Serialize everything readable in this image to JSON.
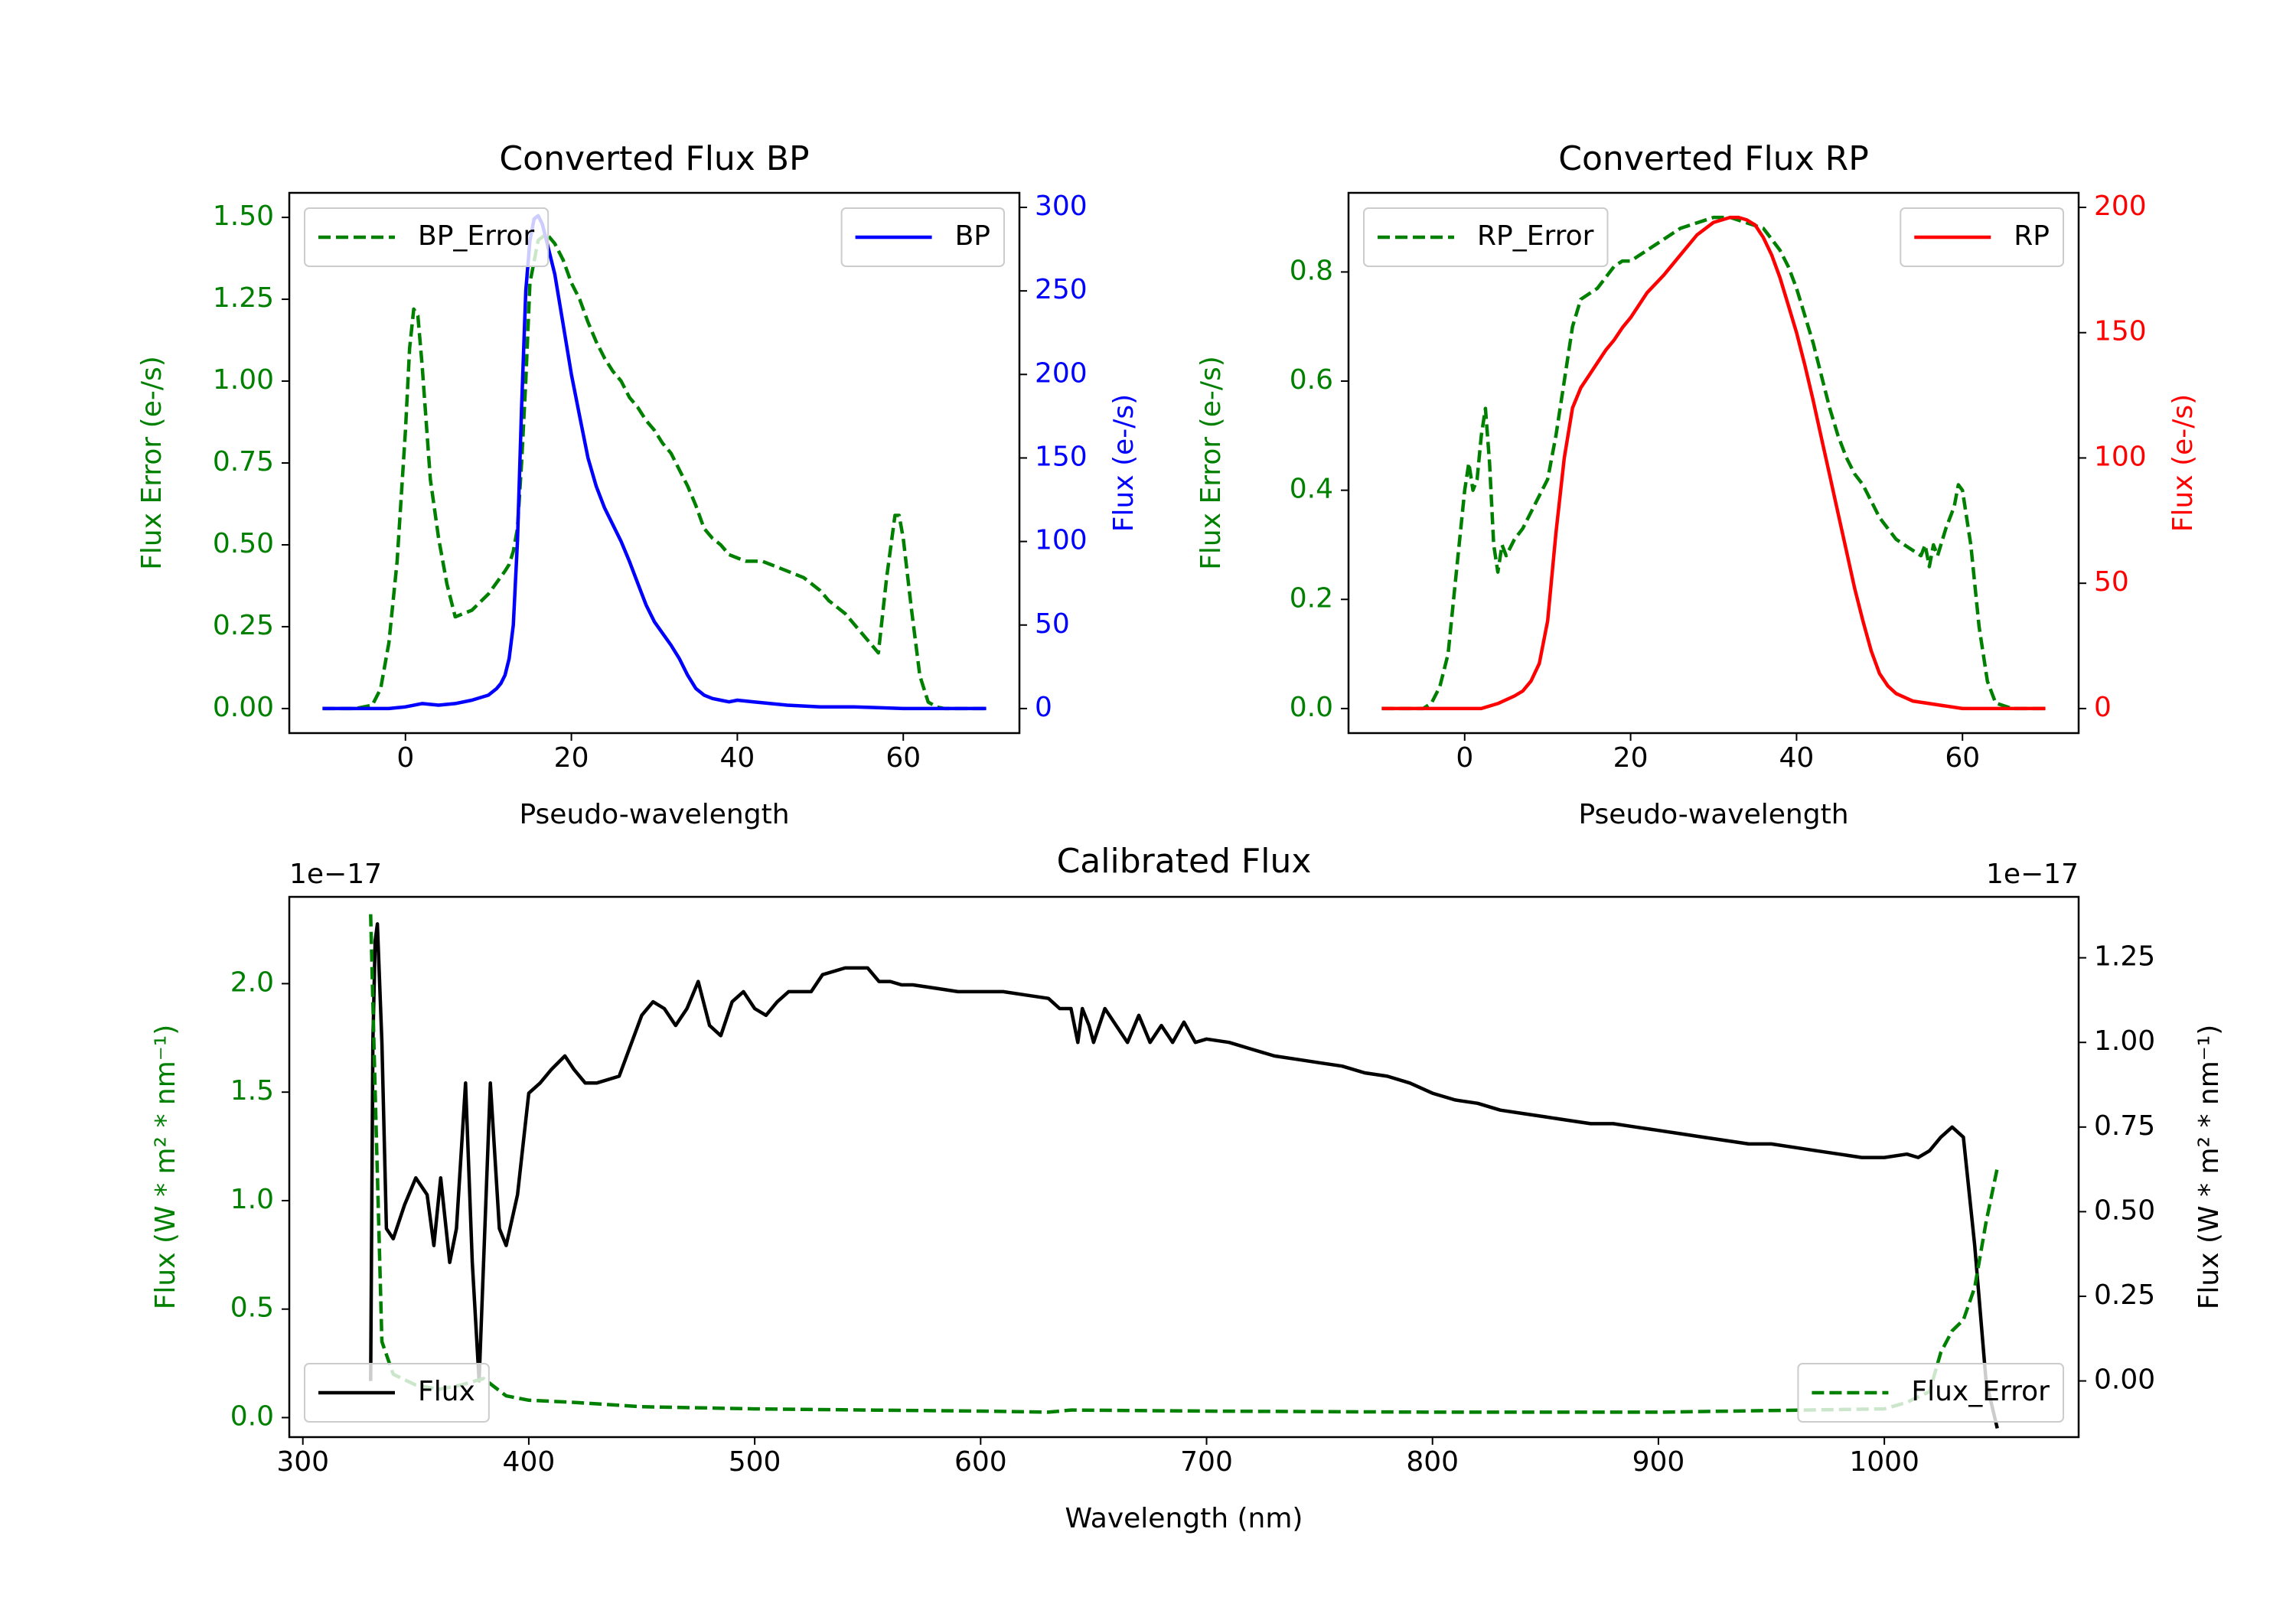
{
  "colors": {
    "error": "#008000",
    "bp": "#0000ff",
    "rp": "#ff0000",
    "flux": "#000000",
    "axis": "#000000",
    "background": "#ffffff",
    "legend_border": "#cccccc"
  },
  "chart_data": [
    {
      "id": "bp",
      "type": "line",
      "title": "Converted Flux BP",
      "xlabel": "Pseudo-wavelength",
      "xlim": [
        -14,
        74
      ],
      "xticks": [
        0,
        20,
        40,
        60
      ],
      "xtick_labels": [
        "0",
        "20",
        "40",
        "60"
      ],
      "left_axis": {
        "label": "Flux Error (e-/s)",
        "color": "#008000",
        "ylim": [
          -0.075,
          1.575
        ],
        "ticks": [
          0,
          0.25,
          0.5,
          0.75,
          1.0,
          1.25,
          1.5
        ],
        "tick_labels": [
          "0.00",
          "0.25",
          "0.50",
          "0.75",
          "1.00",
          "1.25",
          "1.50"
        ]
      },
      "right_axis": {
        "label": "Flux (e-/s)",
        "color": "#0000ff",
        "ylim": [
          -14.7,
          308.7
        ],
        "ticks": [
          0,
          50,
          100,
          150,
          200,
          250,
          300
        ],
        "tick_labels": [
          "0",
          "50",
          "100",
          "150",
          "200",
          "250",
          "300"
        ]
      },
      "series": [
        {
          "name": "BP_Error",
          "axis": "left",
          "style": "dashed",
          "color": "#008000",
          "x": [
            -10,
            -6,
            -4,
            -3,
            -2,
            -1,
            0,
            0.5,
            1,
            1.5,
            2,
            3,
            4,
            5,
            6,
            8,
            10,
            12,
            12.5,
            13,
            13.5,
            14,
            14.5,
            15,
            16,
            17,
            18,
            19,
            20,
            21,
            22,
            23,
            24,
            25,
            26,
            27,
            28,
            29,
            30,
            31,
            32,
            33,
            34,
            35,
            36,
            37,
            38,
            39,
            40,
            41,
            42,
            43,
            44,
            45,
            46,
            47,
            48,
            49,
            50,
            51,
            52,
            53,
            54,
            55,
            56,
            57,
            58,
            59,
            59.5,
            60,
            61,
            62,
            63,
            64,
            65,
            66,
            70
          ],
          "values": [
            0,
            0,
            0.01,
            0.06,
            0.2,
            0.45,
            0.85,
            1.1,
            1.22,
            1.2,
            1.05,
            0.7,
            0.52,
            0.38,
            0.28,
            0.3,
            0.35,
            0.42,
            0.44,
            0.48,
            0.55,
            0.75,
            1.0,
            1.3,
            1.43,
            1.45,
            1.42,
            1.37,
            1.3,
            1.25,
            1.18,
            1.12,
            1.07,
            1.03,
            1.0,
            0.95,
            0.92,
            0.88,
            0.85,
            0.81,
            0.78,
            0.73,
            0.68,
            0.62,
            0.55,
            0.52,
            0.5,
            0.47,
            0.46,
            0.45,
            0.45,
            0.45,
            0.44,
            0.43,
            0.42,
            0.41,
            0.4,
            0.38,
            0.36,
            0.33,
            0.31,
            0.29,
            0.26,
            0.23,
            0.2,
            0.17,
            0.4,
            0.59,
            0.59,
            0.52,
            0.3,
            0.1,
            0.02,
            0.005,
            0,
            0,
            0
          ]
        },
        {
          "name": "BP",
          "axis": "right",
          "style": "solid",
          "color": "#0000ff",
          "x": [
            -10,
            -2,
            0,
            2,
            4,
            6,
            8,
            10,
            11,
            11.5,
            12,
            12.5,
            13,
            13.5,
            14,
            14.5,
            15,
            15.5,
            16,
            16.5,
            17,
            18,
            19,
            20,
            21,
            22,
            23,
            24,
            25,
            26,
            27,
            28,
            29,
            30,
            31,
            32,
            33,
            34,
            35,
            36,
            37,
            38,
            39,
            40,
            42,
            44,
            46,
            50,
            54,
            60,
            70
          ],
          "values": [
            0,
            0,
            1,
            3,
            2,
            3,
            5,
            8,
            12,
            15,
            20,
            30,
            50,
            100,
            180,
            250,
            280,
            293,
            295,
            290,
            280,
            260,
            230,
            200,
            175,
            150,
            133,
            120,
            110,
            100,
            88,
            75,
            62,
            52,
            45,
            38,
            30,
            20,
            12,
            8,
            6,
            5,
            4,
            5,
            4,
            3,
            2,
            1,
            1,
            0,
            0
          ]
        }
      ],
      "legends": [
        {
          "label": "BP_Error",
          "position": "upper left"
        },
        {
          "label": "BP",
          "position": "upper right"
        }
      ]
    },
    {
      "id": "rp",
      "type": "line",
      "title": "Converted Flux RP",
      "xlabel": "Pseudo-wavelength",
      "xlim": [
        -14,
        74
      ],
      "xticks": [
        0,
        20,
        40,
        60
      ],
      "xtick_labels": [
        "0",
        "20",
        "40",
        "60"
      ],
      "left_axis": {
        "label": "Flux Error (e-/s)",
        "color": "#008000",
        "ylim": [
          -0.045,
          0.945
        ],
        "ticks": [
          0,
          0.2,
          0.4,
          0.6,
          0.8
        ],
        "tick_labels": [
          "0.0",
          "0.2",
          "0.4",
          "0.6",
          "0.8"
        ]
      },
      "right_axis": {
        "label": "Flux (e-/s)",
        "color": "#ff0000",
        "ylim": [
          -9.8,
          205.8
        ],
        "ticks": [
          0,
          50,
          100,
          150,
          200
        ],
        "tick_labels": [
          "0",
          "50",
          "100",
          "150",
          "200"
        ]
      },
      "series": [
        {
          "name": "RP_Error",
          "axis": "left",
          "style": "dashed",
          "color": "#008000",
          "x": [
            -10,
            -5,
            -4,
            -3,
            -2,
            -1,
            0,
            0.5,
            1,
            1.5,
            2,
            2.5,
            3,
            3.5,
            4,
            4.5,
            5,
            6,
            7,
            8,
            9,
            10,
            11,
            12,
            13,
            14,
            15,
            16,
            17,
            18,
            19,
            20,
            21,
            22,
            24,
            26,
            28,
            30,
            32,
            34,
            36,
            37,
            38,
            39,
            40,
            41,
            42,
            43,
            44,
            45,
            46,
            47,
            48,
            49,
            50,
            51,
            52,
            53,
            54,
            55,
            55.5,
            56,
            56.5,
            57,
            58,
            59,
            59.5,
            60,
            61,
            62,
            63,
            64,
            66,
            70
          ],
          "values": [
            0,
            0,
            0.01,
            0.04,
            0.1,
            0.25,
            0.4,
            0.45,
            0.4,
            0.42,
            0.5,
            0.55,
            0.45,
            0.3,
            0.25,
            0.3,
            0.28,
            0.31,
            0.33,
            0.36,
            0.39,
            0.42,
            0.5,
            0.6,
            0.7,
            0.75,
            0.76,
            0.77,
            0.79,
            0.81,
            0.82,
            0.82,
            0.83,
            0.84,
            0.86,
            0.88,
            0.89,
            0.9,
            0.9,
            0.89,
            0.88,
            0.86,
            0.84,
            0.81,
            0.77,
            0.72,
            0.67,
            0.61,
            0.55,
            0.5,
            0.46,
            0.43,
            0.41,
            0.38,
            0.35,
            0.33,
            0.31,
            0.3,
            0.29,
            0.28,
            0.3,
            0.26,
            0.3,
            0.28,
            0.33,
            0.37,
            0.41,
            0.4,
            0.3,
            0.15,
            0.05,
            0.01,
            0,
            0
          ]
        },
        {
          "name": "RP",
          "axis": "right",
          "style": "solid",
          "color": "#ff0000",
          "x": [
            -10,
            -2,
            2,
            4,
            6,
            7,
            8,
            9,
            10,
            11,
            12,
            13,
            14,
            15,
            16,
            17,
            18,
            19,
            20,
            22,
            24,
            26,
            28,
            30,
            32,
            33,
            34,
            35,
            36,
            37,
            38,
            39,
            40,
            41,
            42,
            43,
            44,
            45,
            46,
            47,
            48,
            49,
            50,
            51,
            52,
            54,
            56,
            60,
            70
          ],
          "values": [
            0,
            0,
            0,
            2,
            5,
            7,
            11,
            18,
            35,
            70,
            100,
            120,
            128,
            133,
            138,
            143,
            147,
            152,
            156,
            166,
            173,
            181,
            189,
            194,
            196,
            196,
            195,
            193,
            188,
            181,
            172,
            161,
            150,
            137,
            123,
            108,
            93,
            78,
            63,
            48,
            35,
            23,
            14,
            9,
            6,
            3,
            2,
            0,
            0
          ]
        }
      ],
      "legends": [
        {
          "label": "RP_Error",
          "position": "upper left"
        },
        {
          "label": "RP",
          "position": "upper right"
        }
      ]
    },
    {
      "id": "cal",
      "type": "line",
      "title": "Calibrated Flux",
      "xlabel": "Wavelength (nm)",
      "xlim": [
        294,
        1086
      ],
      "xticks": [
        300,
        400,
        500,
        600,
        700,
        800,
        900,
        1000
      ],
      "xtick_labels": [
        "300",
        "400",
        "500",
        "600",
        "700",
        "800",
        "900",
        "1000"
      ],
      "left_axis": {
        "label": "Flux (W * m² * nm⁻¹)",
        "color": "#008000",
        "offset_text": "1e−17",
        "ylim": [
          -0.09,
          2.4
        ],
        "ticks": [
          0,
          0.5,
          1.0,
          1.5,
          2.0
        ],
        "tick_labels": [
          "0.0",
          "0.5",
          "1.0",
          "1.5",
          "2.0"
        ]
      },
      "right_axis": {
        "label": "Flux (W * m² * nm⁻¹)",
        "color": "#000000",
        "offset_text": "1e−17",
        "ylim": [
          -0.166,
          1.43
        ],
        "ticks": [
          0,
          0.25,
          0.5,
          0.75,
          1.0,
          1.25
        ],
        "tick_labels": [
          "0.00",
          "0.25",
          "0.50",
          "0.75",
          "1.00",
          "1.25"
        ]
      },
      "series": [
        {
          "name": "Flux",
          "axis": "right",
          "style": "solid",
          "color": "#000000",
          "x": [
            330,
            331,
            332,
            333,
            335,
            337,
            340,
            345,
            350,
            355,
            358,
            361,
            365,
            368,
            372,
            375,
            378,
            383,
            387,
            390,
            395,
            400,
            405,
            410,
            416,
            420,
            425,
            430,
            440,
            450,
            455,
            460,
            465,
            470,
            475,
            480,
            485,
            490,
            495,
            500,
            505,
            510,
            515,
            520,
            525,
            530,
            540,
            550,
            555,
            560,
            565,
            570,
            580,
            590,
            600,
            610,
            620,
            630,
            635,
            640,
            643,
            645,
            648,
            650,
            655,
            660,
            665,
            670,
            675,
            680,
            685,
            690,
            695,
            700,
            710,
            720,
            730,
            740,
            750,
            760,
            770,
            780,
            790,
            800,
            810,
            820,
            830,
            840,
            850,
            860,
            870,
            880,
            890,
            900,
            910,
            920,
            930,
            940,
            950,
            960,
            970,
            980,
            990,
            1000,
            1010,
            1015,
            1020,
            1025,
            1030,
            1035,
            1040,
            1045,
            1050
          ],
          "values": [
            0,
            1.0,
            1.3,
            1.35,
            1.0,
            0.45,
            0.42,
            0.52,
            0.6,
            0.55,
            0.4,
            0.6,
            0.35,
            0.45,
            0.88,
            0.35,
            0.0,
            0.88,
            0.45,
            0.4,
            0.55,
            0.85,
            0.88,
            0.92,
            0.96,
            0.92,
            0.88,
            0.88,
            0.9,
            1.08,
            1.12,
            1.1,
            1.05,
            1.1,
            1.18,
            1.05,
            1.02,
            1.12,
            1.15,
            1.1,
            1.08,
            1.12,
            1.15,
            1.15,
            1.15,
            1.2,
            1.22,
            1.22,
            1.18,
            1.18,
            1.17,
            1.17,
            1.16,
            1.15,
            1.15,
            1.15,
            1.14,
            1.13,
            1.1,
            1.1,
            1.0,
            1.1,
            1.05,
            1.0,
            1.1,
            1.05,
            1.0,
            1.08,
            1.0,
            1.05,
            1.0,
            1.06,
            1.0,
            1.01,
            1.0,
            0.98,
            0.96,
            0.95,
            0.94,
            0.93,
            0.91,
            0.9,
            0.88,
            0.85,
            0.83,
            0.82,
            0.8,
            0.79,
            0.78,
            0.77,
            0.76,
            0.76,
            0.75,
            0.74,
            0.73,
            0.72,
            0.71,
            0.7,
            0.7,
            0.69,
            0.68,
            0.67,
            0.66,
            0.66,
            0.67,
            0.66,
            0.68,
            0.72,
            0.75,
            0.72,
            0.4,
            0.0,
            -0.14
          ]
        },
        {
          "name": "Flux_Error",
          "axis": "left",
          "style": "dashed",
          "color": "#008000",
          "x": [
            330,
            332,
            335,
            340,
            350,
            360,
            370,
            380,
            385,
            390,
            400,
            420,
            450,
            500,
            550,
            600,
            630,
            640,
            700,
            800,
            900,
            1000,
            1010,
            1020,
            1025,
            1030,
            1035,
            1040,
            1045,
            1050
          ],
          "values": [
            2.32,
            1.5,
            0.35,
            0.2,
            0.15,
            0.13,
            0.15,
            0.18,
            0.14,
            0.1,
            0.08,
            0.07,
            0.05,
            0.04,
            0.035,
            0.03,
            0.025,
            0.035,
            0.03,
            0.025,
            0.025,
            0.04,
            0.07,
            0.12,
            0.3,
            0.4,
            0.45,
            0.6,
            0.9,
            1.15
          ]
        }
      ],
      "legends": [
        {
          "label": "Flux",
          "position": "lower left"
        },
        {
          "label": "Flux_Error",
          "position": "lower right"
        }
      ]
    }
  ]
}
